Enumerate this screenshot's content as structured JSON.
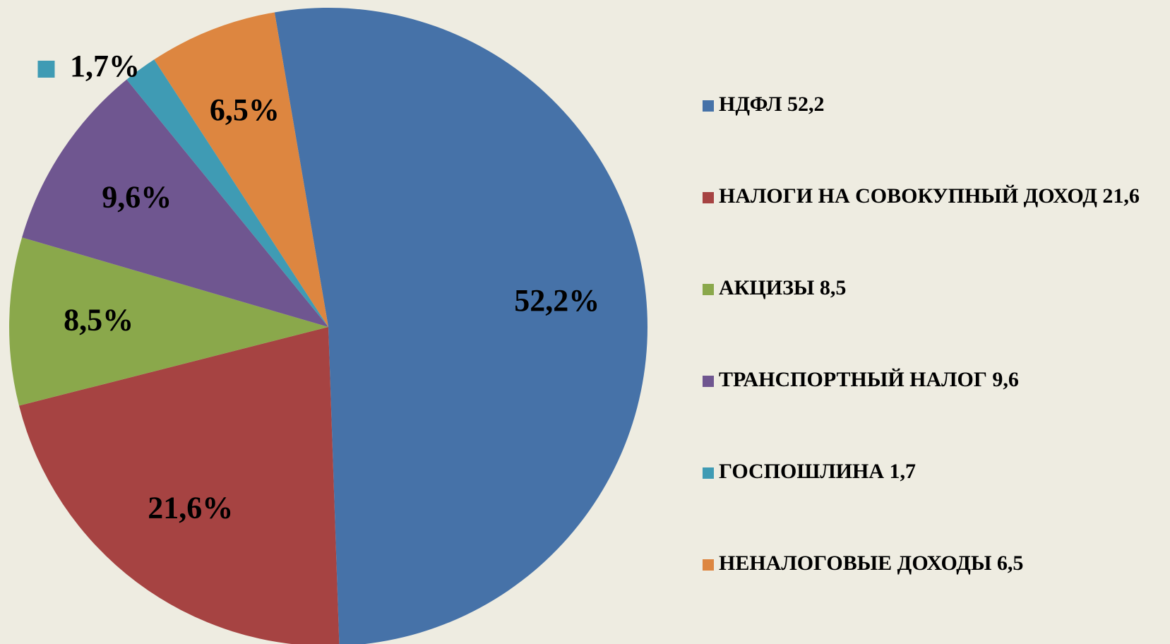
{
  "chart_data": {
    "type": "pie",
    "categories": [
      "НДФЛ 52,2",
      "НАЛОГИ НА СОВОКУПНЫЙ ДОХОД 21,6",
      "АКЦИЗЫ 8,5",
      "ТРАНСПОРТНЫЙ НАЛОГ 9,6",
      "ГОСПОШЛИНА 1,7",
      "НЕНАЛОГОВЫЕ ДОХОДЫ 6,5"
    ],
    "values": [
      52.2,
      21.6,
      8.5,
      9.6,
      1.7,
      6.5
    ],
    "value_labels": [
      "52,2%",
      "21,6%",
      "8,5%",
      "9,6%",
      "1,7%",
      "6,5%"
    ],
    "colors": [
      "#4672a8",
      "#a64342",
      "#8aa84b",
      "#6f5690",
      "#3f9bb4",
      "#dd8640"
    ],
    "legend": "right"
  }
}
